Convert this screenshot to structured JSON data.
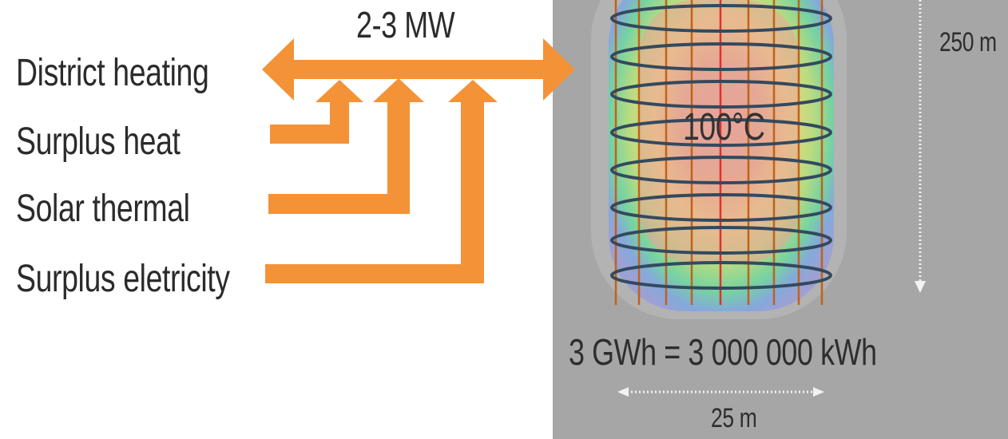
{
  "sources": {
    "district_heating": "District heating",
    "surplus_heat": "Surplus heat",
    "solar_thermal": "Solar thermal",
    "surplus_electricity": "Surplus eletricity"
  },
  "power": "2-3 MW",
  "storage": {
    "temperature": "100°C",
    "energy": "3 GWh = 3 000 000 kWh",
    "width": "25 m",
    "depth": "250 m"
  },
  "colors": {
    "arrow": "#f39237",
    "panel": "#a6a6a6",
    "coil": "#34495e",
    "borehole": "#c0621a",
    "center_line": "#e0302a"
  }
}
